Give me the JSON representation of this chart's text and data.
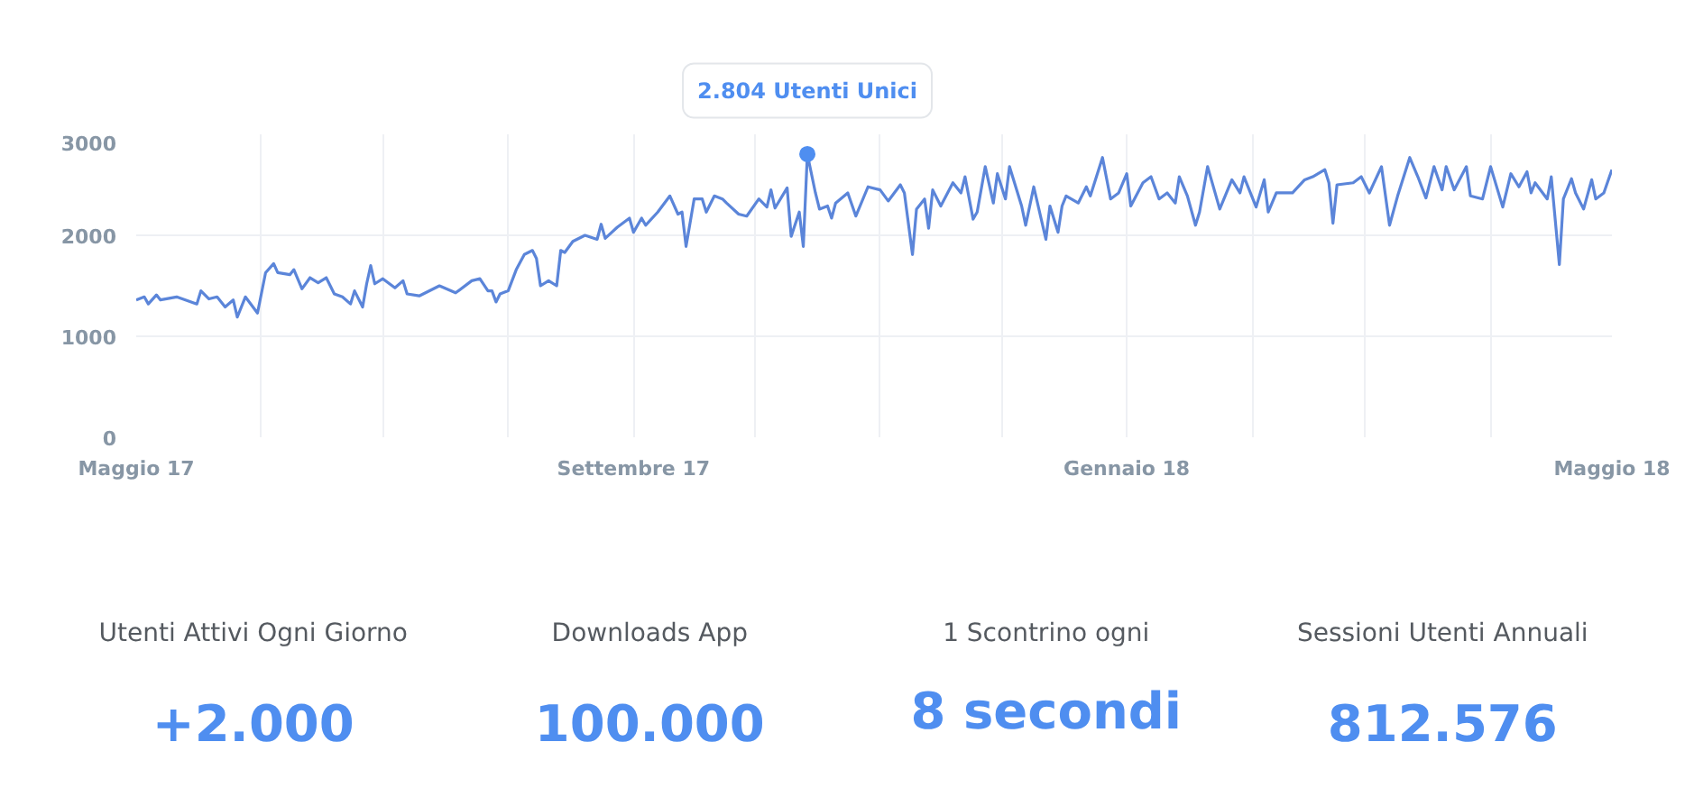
{
  "chart_data": [
    {
      "type": "line",
      "xlim": [
        "2017-05-01",
        "2018-05-01"
      ],
      "ylim": [
        0,
        3000
      ],
      "yticks": [
        0,
        1000,
        2000,
        3000
      ],
      "xticks": [
        {
          "value": "2017-05-01",
          "label": "Maggio 17"
        },
        {
          "value": "2017-06-01",
          "label": null
        },
        {
          "value": "2017-07-01",
          "label": null
        },
        {
          "value": "2017-08-01",
          "label": null
        },
        {
          "value": "2017-09-01",
          "label": "Settembre 17"
        },
        {
          "value": "2017-10-01",
          "label": null
        },
        {
          "value": "2017-11-01",
          "label": null
        },
        {
          "value": "2017-12-01",
          "label": null
        },
        {
          "value": "2018-01-01",
          "label": "Gennaio 18"
        },
        {
          "value": "2018-02-01",
          "label": null
        },
        {
          "value": "2018-03-01",
          "label": null
        },
        {
          "value": "2018-04-01",
          "label": null
        },
        {
          "value": "2018-05-01",
          "label": "Maggio 18"
        }
      ],
      "grid": true,
      "marker": "none",
      "line_style": "solid",
      "annotations": [
        {
          "text": "2.804 Utenti Unici",
          "x": "2017-10-14",
          "y": 2804
        }
      ],
      "x": [
        "2017-05-01",
        "2017-05-03",
        "2017-05-04",
        "2017-05-06",
        "2017-05-07",
        "2017-05-11",
        "2017-05-16",
        "2017-05-17",
        "2017-05-19",
        "2017-05-21",
        "2017-05-23",
        "2017-05-25",
        "2017-05-26",
        "2017-05-28",
        "2017-05-31",
        "2017-06-02",
        "2017-06-04",
        "2017-06-05",
        "2017-06-08",
        "2017-06-09",
        "2017-06-11",
        "2017-06-13",
        "2017-06-15",
        "2017-06-17",
        "2017-06-19",
        "2017-06-21",
        "2017-06-23",
        "2017-06-24",
        "2017-06-26",
        "2017-06-27",
        "2017-06-28",
        "2017-06-29",
        "2017-07-01",
        "2017-07-04",
        "2017-07-06",
        "2017-07-07",
        "2017-07-10",
        "2017-07-15",
        "2017-07-19",
        "2017-07-23",
        "2017-07-25",
        "2017-07-27",
        "2017-07-28",
        "2017-07-29",
        "2017-07-30",
        "2017-08-01",
        "2017-08-03",
        "2017-08-05",
        "2017-08-07",
        "2017-08-08",
        "2017-08-09",
        "2017-08-11",
        "2017-08-13",
        "2017-08-14",
        "2017-08-15",
        "2017-08-17",
        "2017-08-20",
        "2017-08-23",
        "2017-08-24",
        "2017-08-25",
        "2017-08-28",
        "2017-08-31",
        "2017-09-01",
        "2017-09-03",
        "2017-09-04",
        "2017-09-07",
        "2017-09-10",
        "2017-09-12",
        "2017-09-13",
        "2017-09-14",
        "2017-09-16",
        "2017-09-18",
        "2017-09-19",
        "2017-09-21",
        "2017-09-23",
        "2017-09-24",
        "2017-09-27",
        "2017-09-29",
        "2017-10-02",
        "2017-10-04",
        "2017-10-05",
        "2017-10-06",
        "2017-10-09",
        "2017-10-10",
        "2017-10-12",
        "2017-10-13",
        "2017-10-14",
        "2017-10-16",
        "2017-10-17",
        "2017-10-19",
        "2017-10-20",
        "2017-10-21",
        "2017-10-24",
        "2017-10-26",
        "2017-10-29",
        "2017-11-01",
        "2017-11-03",
        "2017-11-06",
        "2017-11-07",
        "2017-11-09",
        "2017-11-10",
        "2017-11-12",
        "2017-11-13",
        "2017-11-14",
        "2017-11-16",
        "2017-11-19",
        "2017-11-21",
        "2017-11-22",
        "2017-11-24",
        "2017-11-25",
        "2017-11-27",
        "2017-11-29",
        "2017-11-30",
        "2017-12-02",
        "2017-12-03",
        "2017-12-06",
        "2017-12-07",
        "2017-12-09",
        "2017-12-12",
        "2017-12-13",
        "2017-12-15",
        "2017-12-16",
        "2017-12-17",
        "2017-12-20",
        "2017-12-22",
        "2017-12-23",
        "2017-12-26",
        "2017-12-28",
        "2017-12-30",
        "2018-01-01",
        "2018-01-02",
        "2018-01-05",
        "2018-01-07",
        "2018-01-09",
        "2018-01-11",
        "2018-01-13",
        "2018-01-14",
        "2018-01-16",
        "2018-01-18",
        "2018-01-19",
        "2018-01-21",
        "2018-01-24",
        "2018-01-27",
        "2018-01-29",
        "2018-01-30",
        "2018-02-02",
        "2018-02-04",
        "2018-02-05",
        "2018-02-07",
        "2018-02-11",
        "2018-02-14",
        "2018-02-16",
        "2018-02-19",
        "2018-02-20",
        "2018-02-21",
        "2018-02-22",
        "2018-02-26",
        "2018-02-28",
        "2018-03-02",
        "2018-03-05",
        "2018-03-07",
        "2018-03-09",
        "2018-03-12",
        "2018-03-14",
        "2018-03-16",
        "2018-03-18",
        "2018-03-20",
        "2018-03-21",
        "2018-03-23",
        "2018-03-26",
        "2018-03-27",
        "2018-03-30",
        "2018-04-01",
        "2018-04-04",
        "2018-04-06",
        "2018-04-08",
        "2018-04-10",
        "2018-04-11",
        "2018-04-12",
        "2018-04-15",
        "2018-04-16",
        "2018-04-18",
        "2018-04-19",
        "2018-04-21",
        "2018-04-22",
        "2018-04-24",
        "2018-04-26",
        "2018-04-27",
        "2018-04-29",
        "2018-05-01"
      ],
      "series": [
        {
          "color": "#5b85d9",
          "values": [
            1360,
            1390,
            1320,
            1410,
            1360,
            1390,
            1320,
            1450,
            1370,
            1390,
            1290,
            1360,
            1190,
            1390,
            1230,
            1630,
            1720,
            1630,
            1610,
            1660,
            1470,
            1580,
            1530,
            1580,
            1420,
            1390,
            1320,
            1450,
            1290,
            1520,
            1700,
            1520,
            1570,
            1480,
            1550,
            1420,
            1400,
            1500,
            1430,
            1550,
            1570,
            1450,
            1450,
            1340,
            1420,
            1450,
            1660,
            1810,
            1850,
            1770,
            1500,
            1550,
            1500,
            1850,
            1830,
            1940,
            2000,
            1960,
            2110,
            1970,
            2080,
            2170,
            2030,
            2170,
            2100,
            2230,
            2390,
            2210,
            2230,
            1890,
            2360,
            2360,
            2230,
            2390,
            2360,
            2320,
            2210,
            2190,
            2360,
            2280,
            2450,
            2270,
            2470,
            1990,
            2230,
            1890,
            2804,
            2420,
            2260,
            2290,
            2170,
            2320,
            2420,
            2190,
            2480,
            2450,
            2340,
            2500,
            2420,
            1810,
            2260,
            2360,
            2070,
            2450,
            2290,
            2520,
            2420,
            2580,
            2160,
            2230,
            2680,
            2320,
            2610,
            2360,
            2680,
            2290,
            2100,
            2480,
            1960,
            2290,
            2030,
            2290,
            2390,
            2320,
            2480,
            2390,
            2770,
            2360,
            2420,
            2610,
            2290,
            2520,
            2580,
            2360,
            2420,
            2320,
            2580,
            2390,
            2100,
            2230,
            2680,
            2260,
            2550,
            2420,
            2580,
            2280,
            2550,
            2230,
            2420,
            2420,
            2550,
            2580,
            2650,
            2520,
            2120,
            2500,
            2520,
            2580,
            2420,
            2680,
            2100,
            2390,
            2770,
            2580,
            2370,
            2680,
            2450,
            2680,
            2450,
            2680,
            2390,
            2360,
            2680,
            2280,
            2610,
            2480,
            2630,
            2420,
            2520,
            2360,
            2580,
            1710,
            2360,
            2560,
            2420,
            2260,
            2550,
            2360,
            2420,
            2650
          ]
        }
      ]
    },
    {
      "type": "other",
      "annotations": [
        "Utenti Attivi Ogni Giorno",
        "+2.000",
        "Downloads App",
        "100.000",
        "1 Scontrino ogni",
        "8 secondi",
        "Sessioni Utenti Annuali",
        "812.576"
      ]
    }
  ]
}
